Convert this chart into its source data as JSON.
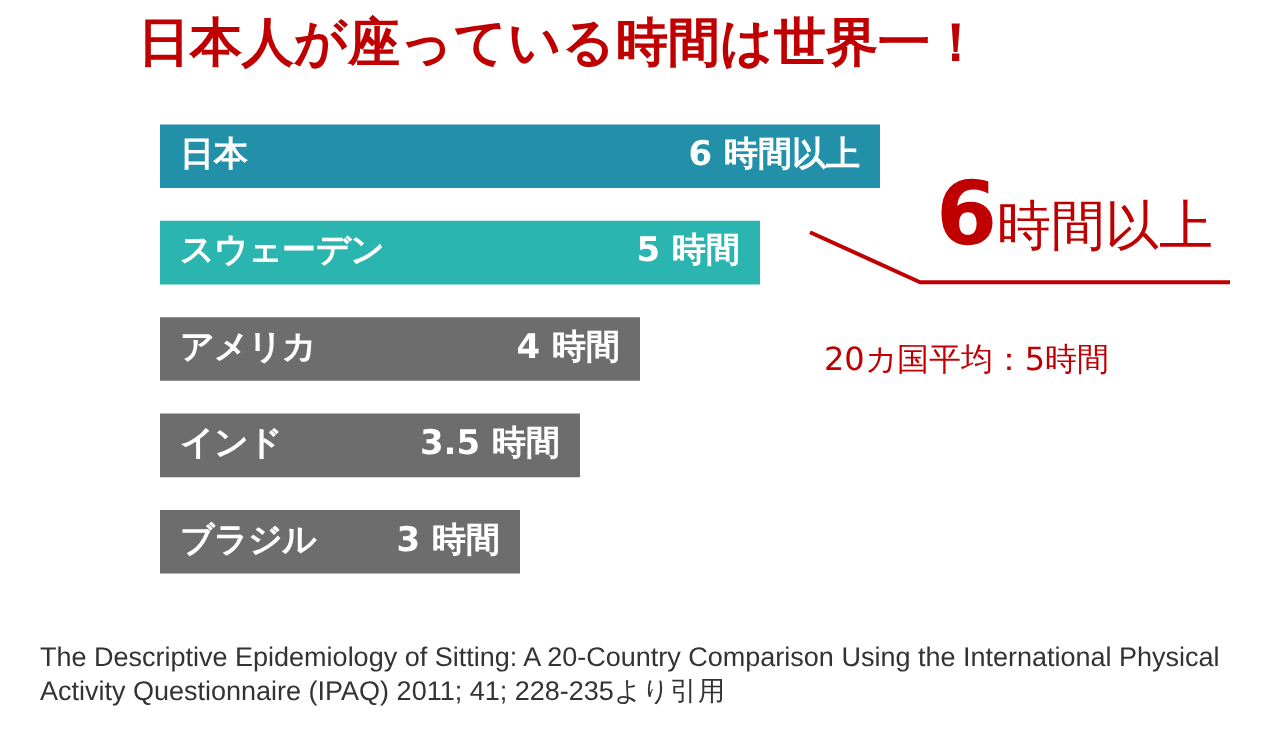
{
  "chart_data": {
    "type": "bar",
    "orientation": "horizontal",
    "title": "日本人が座っている時間は世界一！",
    "categories": [
      "日本",
      "スウェーデン",
      "アメリカ",
      "インド",
      "ブラジル"
    ],
    "values": [
      6,
      5,
      4,
      3.5,
      3
    ],
    "colors": [
      "#2190a8",
      "#2bb5b0",
      "#6d6d6d",
      "#6d6d6d",
      "#6d6d6d"
    ],
    "value_labels": [
      "6 時間以上",
      "5 時間",
      "4 時間",
      "3.5 時間",
      "3 時間"
    ],
    "legend": false,
    "tick_labels": false,
    "annotations": [
      {
        "text": "6時間以上",
        "x": 6,
        "y": "日本"
      },
      "20カ国平均：5時間",
      "The Descriptive Epidemiology of Sitting: A 20-Country Comparison Using the International Physical Activity Questionnaire (IPAQ) 2011; 41; 228-235より引用"
    ]
  }
}
